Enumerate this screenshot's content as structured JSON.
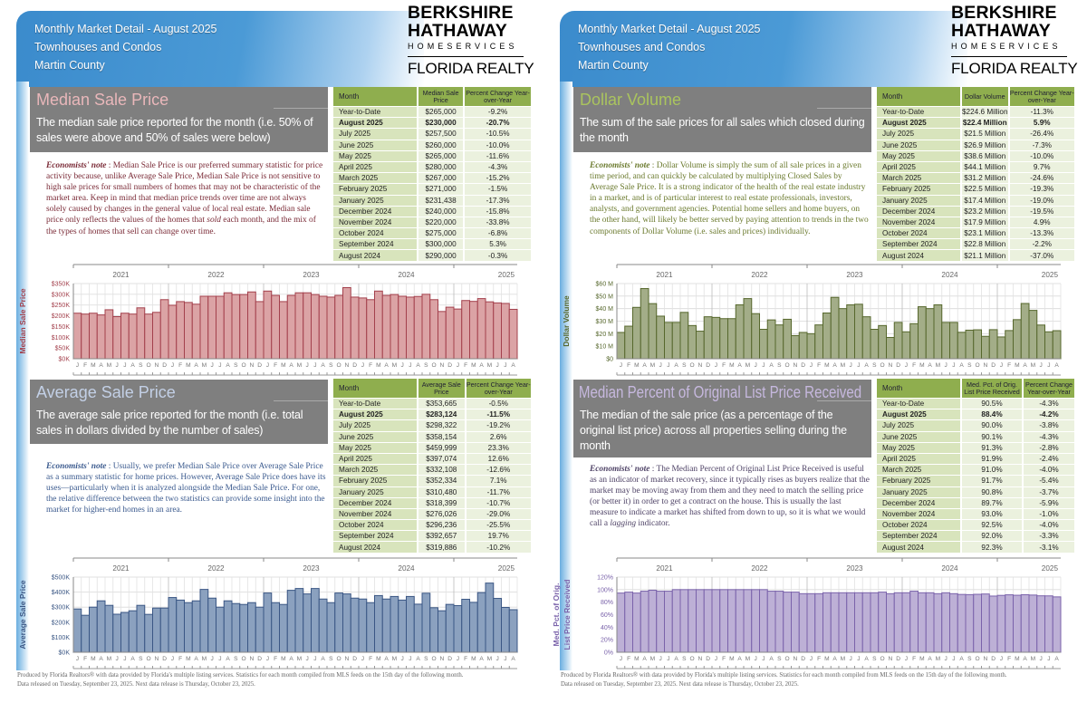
{
  "pages": [
    {
      "header": {
        "line1": "Monthly Market Detail - August 2025",
        "line2": "Townhouses and Condos",
        "line3": "Martin County"
      },
      "logo": {
        "l1": "BERKSHIRE",
        "l2": "HATHAWAY",
        "l3": "HOMESERVICES",
        "l4": "FLORIDA REALTY"
      },
      "sections": [
        {
          "title": "Median Sale Price",
          "title_color": "#e9b7ba",
          "note_color": "#7a2a36",
          "subtitle": "The median sale price reported for the month (i.e. 50% of sales were above and 50% of sales were below)",
          "note_label": "Economists' note",
          "note_pre": " :  Median Sale Price is our preferred summary statistic for price activity because, unlike Average Sale Price, Median Sale Price is not sensitive to high sale prices for small numbers of homes that may not be characteristic of the market area.  Keep in mind that median price trends over time are not always solely caused by changes in the general value of local real estate.  Median sale price only reflects the values of the homes that ",
          "note_em": "sold",
          "note_post": "  each month, and the mix of the types of homes that sell can change over time.",
          "table": {
            "headers": [
              "Month",
              "Median Sale Price",
              "Percent Change Year-over-Year"
            ],
            "rows": [
              [
                "Year-to-Date",
                "$265,000",
                "-9.2%"
              ],
              [
                "August 2025",
                "$230,000",
                "-20.7%"
              ],
              [
                "July 2025",
                "$257,500",
                "-10.5%"
              ],
              [
                "June 2025",
                "$260,000",
                "-10.0%"
              ],
              [
                "May 2025",
                "$265,000",
                "-11.6%"
              ],
              [
                "April 2025",
                "$280,000",
                "-4.3%"
              ],
              [
                "March 2025",
                "$267,000",
                "-15.2%"
              ],
              [
                "February 2025",
                "$271,000",
                "-1.5%"
              ],
              [
                "January 2025",
                "$231,438",
                "-17.3%"
              ],
              [
                "December 2024",
                "$240,000",
                "-15.8%"
              ],
              [
                "November 2024",
                "$220,000",
                "-33.8%"
              ],
              [
                "October 2024",
                "$275,000",
                "-6.8%"
              ],
              [
                "September 2024",
                "$300,000",
                "5.3%"
              ],
              [
                "August 2024",
                "$290,000",
                "-0.3%"
              ]
            ]
          }
        },
        {
          "title": "Average Sale Price",
          "title_color": "#c3d0e6",
          "note_color": "#3b5a8e",
          "subtitle": "The average sale price reported for the month (i.e. total sales in dollars divided by the number of sales)",
          "note_label": "Economists' note",
          "note_pre": " :  Usually, we prefer Median Sale Price over Average Sale Price as a summary statistic for home prices.  However, Average Sale Price does have its uses—particularly when it is analyzed alongside the Median Sale Price.  For one, the relative difference between the two statistics can provide some insight into the market for higher-end homes in an area.",
          "note_em": "",
          "note_post": "",
          "table": {
            "headers": [
              "Month",
              "Average Sale Price",
              "Percent Change Year-over-Year"
            ],
            "rows": [
              [
                "Year-to-Date",
                "$353,665",
                "-0.5%"
              ],
              [
                "August 2025",
                "$283,124",
                "-11.5%"
              ],
              [
                "July 2025",
                "$298,322",
                "-19.2%"
              ],
              [
                "June 2025",
                "$358,154",
                "2.6%"
              ],
              [
                "May 2025",
                "$459,999",
                "23.3%"
              ],
              [
                "April 2025",
                "$397,074",
                "12.6%"
              ],
              [
                "March 2025",
                "$332,108",
                "-12.6%"
              ],
              [
                "February 2025",
                "$352,334",
                "7.1%"
              ],
              [
                "January 2025",
                "$310,480",
                "-11.7%"
              ],
              [
                "December 2024",
                "$318,399",
                "-10.7%"
              ],
              [
                "November 2024",
                "$276,026",
                "-29.0%"
              ],
              [
                "October 2024",
                "$296,236",
                "-25.5%"
              ],
              [
                "September 2024",
                "$392,657",
                "19.7%"
              ],
              [
                "August 2024",
                "$319,886",
                "-10.2%"
              ]
            ]
          }
        }
      ],
      "footer": {
        "line1": "Produced by Florida Realtors® with data provided by Florida's multiple listing services. Statistics for each month compiled from MLS feeds on the 15th day of the following month.",
        "line2": "Data released on Tuesday, September 23, 2025. Next data release is Thursday, October 23, 2025."
      }
    },
    {
      "header": {
        "line1": "Monthly Market Detail - August 2025",
        "line2": "Townhouses and Condos",
        "line3": "Martin County"
      },
      "logo": {
        "l1": "BERKSHIRE",
        "l2": "HATHAWAY",
        "l3": "HOMESERVICES",
        "l4": "FLORIDA REALTY"
      },
      "sections": [
        {
          "title": "Dollar Volume",
          "title_color": "#aac45e",
          "note_color": "#6b7a2e",
          "subtitle": "The sum of the sale prices for all sales which closed during the month",
          "note_label": "Economists' note",
          "note_pre": " :  Dollar Volume is simply the sum of all sale prices in a given time period, and can quickly be calculated by multiplying Closed Sales by Average Sale Price.  It is a strong indicator of the health of the real estate industry in a market, and is of particular interest to real estate professionals, investors, analysts, and government agencies.  Potential home sellers and home buyers, on the other hand, will likely be better served by paying attention to trends in the two components of Dollar Volume (i.e. sales and prices) individually.",
          "note_em": "",
          "note_post": "",
          "table": {
            "headers": [
              "Month",
              "Dollar Volume",
              "Percent Change Year-over-Year"
            ],
            "rows": [
              [
                "Year-to-Date",
                "$224.6 Million",
                "-11.3%"
              ],
              [
                "August 2025",
                "$22.4 Million",
                "5.9%"
              ],
              [
                "July 2025",
                "$21.5 Million",
                "-26.4%"
              ],
              [
                "June 2025",
                "$26.9 Million",
                "-7.3%"
              ],
              [
                "May 2025",
                "$38.6 Million",
                "-10.0%"
              ],
              [
                "April 2025",
                "$44.1 Million",
                "9.7%"
              ],
              [
                "March 2025",
                "$31.2 Million",
                "-24.6%"
              ],
              [
                "February 2025",
                "$22.5 Million",
                "-19.3%"
              ],
              [
                "January 2025",
                "$17.4 Million",
                "-19.0%"
              ],
              [
                "December 2024",
                "$23.2 Million",
                "-19.5%"
              ],
              [
                "November 2024",
                "$17.9 Million",
                "4.9%"
              ],
              [
                "October 2024",
                "$23.1 Million",
                "-13.3%"
              ],
              [
                "September 2024",
                "$22.8 Million",
                "-2.2%"
              ],
              [
                "August 2024",
                "$21.1 Million",
                "-37.0%"
              ]
            ]
          }
        },
        {
          "title": "Median Percent of Original List Price Received",
          "title_color": "#c6b8de",
          "note_color": "#4e4266",
          "subtitle": "The median of the sale price (as a percentage of the original list price) across all properties selling during the month",
          "note_label": "Economists' note",
          "note_pre": " :  The Median Percent of Original List Price Received is useful as an indicator of market recovery, since it typically rises as buyers realize that the market may be moving away from them and they need to match the selling price (or better it) in order to get a contract on the house.  This is usually the last measure to indicate a market has shifted from down to up, so it is what we would call a ",
          "note_em": "lagging",
          "note_post": "  indicator.",
          "table": {
            "headers": [
              "Month",
              "Med. Pct. of Orig. List Price Received",
              "Percent Change Year-over-Year"
            ],
            "rows": [
              [
                "Year-to-Date",
                "90.5%",
                "-4.3%"
              ],
              [
                "August 2025",
                "88.4%",
                "-4.2%"
              ],
              [
                "July 2025",
                "90.0%",
                "-3.8%"
              ],
              [
                "June 2025",
                "90.1%",
                "-4.3%"
              ],
              [
                "May 2025",
                "91.3%",
                "-2.8%"
              ],
              [
                "April 2025",
                "91.9%",
                "-2.4%"
              ],
              [
                "March 2025",
                "91.0%",
                "-4.0%"
              ],
              [
                "February 2025",
                "91.7%",
                "-5.4%"
              ],
              [
                "January 2025",
                "90.8%",
                "-3.7%"
              ],
              [
                "December 2024",
                "89.7%",
                "-5.9%"
              ],
              [
                "November 2024",
                "93.0%",
                "-1.0%"
              ],
              [
                "October 2024",
                "92.5%",
                "-4.0%"
              ],
              [
                "September 2024",
                "92.0%",
                "-3.3%"
              ],
              [
                "August 2024",
                "92.3%",
                "-3.1%"
              ]
            ]
          }
        }
      ],
      "footer": {
        "line1": "Produced by Florida Realtors® with data provided by Florida's multiple listing services. Statistics for each month compiled from MLS feeds on the 15th day of the following month.",
        "line2": "Data released on Tuesday, September 23, 2025. Next data release is Thursday, October 23, 2025."
      }
    }
  ],
  "chart_data": [
    {
      "type": "bar",
      "ylabel": "Median Sale Price",
      "ylim": [
        0,
        350000
      ],
      "yticks": [
        0,
        50000,
        100000,
        150000,
        200000,
        250000,
        300000,
        350000
      ],
      "ytick_labels": [
        "$0K",
        "$50K",
        "$100K",
        "$150K",
        "$200K",
        "$250K",
        "$300K",
        "$350K"
      ],
      "years": [
        "2021",
        "2022",
        "2023",
        "2024",
        "2025"
      ],
      "month_labels": [
        "J",
        "F",
        "M",
        "A",
        "M",
        "J",
        "J",
        "A",
        "S",
        "O",
        "N",
        "D"
      ],
      "grid": true,
      "fill": "#dba3a5",
      "stroke": "#a3404c",
      "label_color": "#a3404c",
      "values": [
        212000,
        208000,
        212000,
        204000,
        228000,
        196000,
        212000,
        208000,
        237000,
        208000,
        216000,
        275000,
        249000,
        266000,
        262000,
        254000,
        291000,
        291000,
        291000,
        307000,
        299000,
        299000,
        311000,
        266000,
        315000,
        295000,
        266000,
        295000,
        307000,
        307000,
        299000,
        291000,
        287000,
        295000,
        331000,
        287000,
        283000,
        275000,
        315000,
        295000,
        299000,
        291000,
        287000,
        290000,
        300000,
        275000,
        220000,
        240000,
        231438,
        271000,
        267000,
        280000,
        265000,
        260000,
        257500,
        230000
      ]
    },
    {
      "type": "bar",
      "ylabel": "Average Sale Price",
      "ylim": [
        0,
        500000
      ],
      "yticks": [
        0,
        100000,
        200000,
        300000,
        400000,
        500000
      ],
      "ytick_labels": [
        "$0K",
        "$100K",
        "$200K",
        "$300K",
        "$400K",
        "$500K"
      ],
      "years": [
        "2021",
        "2022",
        "2023",
        "2024",
        "2025"
      ],
      "month_labels": [
        "J",
        "F",
        "M",
        "A",
        "M",
        "J",
        "J",
        "A",
        "S",
        "O",
        "N",
        "D"
      ],
      "grid": true,
      "fill": "#8ba1bf",
      "stroke": "#3a5684",
      "label_color": "#3a5684",
      "values": [
        288000,
        246000,
        300000,
        342000,
        312000,
        253000,
        265000,
        276000,
        312000,
        252000,
        294000,
        294000,
        364000,
        347000,
        330000,
        342000,
        418000,
        360000,
        300000,
        342000,
        324000,
        318000,
        330000,
        300000,
        394000,
        330000,
        318000,
        412000,
        424000,
        388000,
        424000,
        354000,
        330000,
        394000,
        388000,
        360000,
        354000,
        330000,
        377000,
        354000,
        371000,
        347000,
        371000,
        319886,
        392657,
        296236,
        276026,
        318399,
        310480,
        352334,
        332108,
        397074,
        459999,
        358154,
        298322,
        283124
      ]
    },
    {
      "type": "bar",
      "ylabel": "Dollar Volume",
      "ylim": [
        0,
        60
      ],
      "yticks": [
        0,
        10,
        20,
        30,
        40,
        50,
        60
      ],
      "ytick_labels": [
        "$0",
        "$10 M",
        "$20 M",
        "$30 M",
        "$40 M",
        "$50 M",
        "$60 M"
      ],
      "years": [
        "2021",
        "2022",
        "2023",
        "2024",
        "2025"
      ],
      "month_labels": [
        "J",
        "F",
        "M",
        "A",
        "M",
        "J",
        "J",
        "A",
        "S",
        "O",
        "N",
        "D"
      ],
      "grid": true,
      "fill": "#a3ad88",
      "stroke": "#56672c",
      "label_color": "#56672c",
      "values": [
        21,
        26,
        41,
        56,
        44,
        34,
        29,
        29,
        37,
        26.5,
        22,
        33.5,
        33,
        32,
        32,
        43,
        48,
        36,
        23.5,
        31,
        27,
        31.5,
        18.5,
        21,
        20,
        27,
        36.5,
        49,
        40,
        43,
        43.5,
        33.5,
        23.5,
        26.5,
        17,
        29,
        21.5,
        28,
        41.5,
        40,
        43,
        29,
        29,
        21.1,
        22.8,
        23.1,
        17.9,
        23.2,
        17.4,
        22.5,
        31.2,
        44.1,
        38.6,
        26.9,
        21.5,
        22.4
      ]
    },
    {
      "type": "bar",
      "ylabel": "Med. Pct. of Orig. List Price Received",
      "ylabel_lines": [
        "Med. Pct. of Orig.",
        "List Price Received"
      ],
      "ylim": [
        0,
        120
      ],
      "yticks": [
        0,
        20,
        40,
        60,
        80,
        100,
        120
      ],
      "ytick_labels": [
        "0%",
        "20%",
        "40%",
        "60%",
        "80%",
        "100%",
        "120%"
      ],
      "years": [
        "2021",
        "2022",
        "2023",
        "2024",
        "2025"
      ],
      "month_labels": [
        "J",
        "F",
        "M",
        "A",
        "M",
        "J",
        "J",
        "A",
        "S",
        "O",
        "N",
        "D"
      ],
      "grid": true,
      "fill": "#bdb0d6",
      "stroke": "#7a62aa",
      "label_color": "#7a62aa",
      "values": [
        94.5,
        96,
        94.5,
        97.5,
        99,
        97.5,
        97.5,
        100,
        100,
        100,
        100,
        100,
        100,
        100,
        100,
        100,
        100,
        100,
        100,
        97.5,
        97.5,
        96,
        96,
        93.5,
        93.5,
        93.5,
        95,
        95,
        95,
        95,
        95,
        95,
        95,
        96,
        93.5,
        95,
        95,
        97.5,
        95,
        95,
        93.5,
        95,
        93.5,
        92.3,
        92.0,
        92.5,
        93.0,
        89.7,
        90.8,
        91.7,
        91.0,
        91.9,
        91.3,
        90.1,
        90.0,
        88.4
      ]
    }
  ]
}
